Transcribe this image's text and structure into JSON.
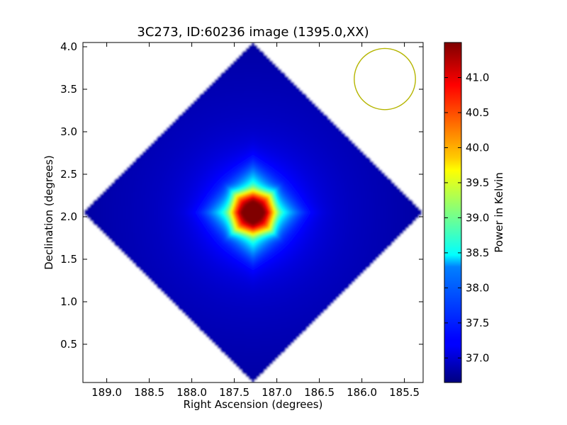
{
  "chart_data": {
    "type": "heatmap",
    "title": "3C273, ID:60236 image (1395.0,XX)",
    "xlabel": "Right Ascension (degrees)",
    "ylabel": "Declination (degrees)",
    "xlim": [
      189.28,
      185.28
    ],
    "ylim": [
      0.05,
      4.05
    ],
    "x_ticks": [
      "189.0",
      "188.5",
      "188.0",
      "187.5",
      "187.0",
      "186.5",
      "186.0",
      "185.5"
    ],
    "x_tick_values": [
      189.0,
      188.5,
      188.0,
      187.5,
      187.0,
      186.5,
      186.0,
      185.5
    ],
    "y_ticks": [
      "0.5",
      "1.0",
      "1.5",
      "2.0",
      "2.5",
      "3.0",
      "3.5",
      "4.0"
    ],
    "y_tick_values": [
      0.5,
      1.0,
      1.5,
      2.0,
      2.5,
      3.0,
      3.5,
      4.0
    ],
    "colormap": "jet",
    "colorbar": {
      "label": "Power in Kelvin",
      "range": [
        36.65,
        41.5
      ],
      "ticks": [
        "37.0",
        "37.5",
        "38.0",
        "38.5",
        "39.0",
        "39.5",
        "40.0",
        "40.5",
        "41.0"
      ],
      "tick_values": [
        37.0,
        37.5,
        38.0,
        38.5,
        39.0,
        39.5,
        40.0,
        40.5,
        41.0
      ]
    },
    "coverage": {
      "shape": "diamond",
      "center": [
        187.28,
        2.05
      ],
      "half_extent_deg": 2.0
    },
    "source": {
      "ra": 187.28,
      "dec": 2.05,
      "peak_kelvin": 41.45,
      "background_kelvin": 37.1,
      "corner_kelvin": 36.8
    },
    "beam": {
      "ra": 185.73,
      "dec": 3.62,
      "radius_deg": 0.36,
      "color": "#b5b500"
    },
    "grid": false
  }
}
